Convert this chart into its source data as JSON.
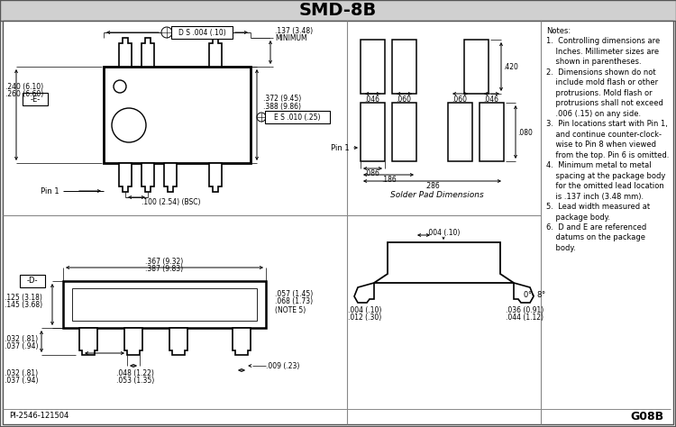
{
  "title": "SMD-8B",
  "bg_color": "#e8e8e8",
  "header_bg": "#d0d0d0",
  "notes": [
    "Notes:",
    "1.  Controlling dimensions are",
    "    Inches. Millimeter sizes are",
    "    shown in parentheses.",
    "2.  Dimensions shown do not",
    "    include mold flash or other",
    "    protrusions. Mold flash or",
    "    protrusions shall not exceed",
    "    .006 (.15) on any side.",
    "3.  Pin locations start with Pin 1,",
    "    and continue counter-clock-",
    "    wise to Pin 8 when viewed",
    "    from the top. Pin 6 is omitted.",
    "4.  Minimum metal to metal",
    "    spacing at the package body",
    "    for the omitted lead location",
    "    is .137 inch (3.48 mm).",
    "5.  Lead width measured at",
    "    package body.",
    "6.  D and E are referenced",
    "    datums on the package",
    "    body."
  ],
  "footer_left": "PI-2546-121504",
  "footer_right": "G08B"
}
